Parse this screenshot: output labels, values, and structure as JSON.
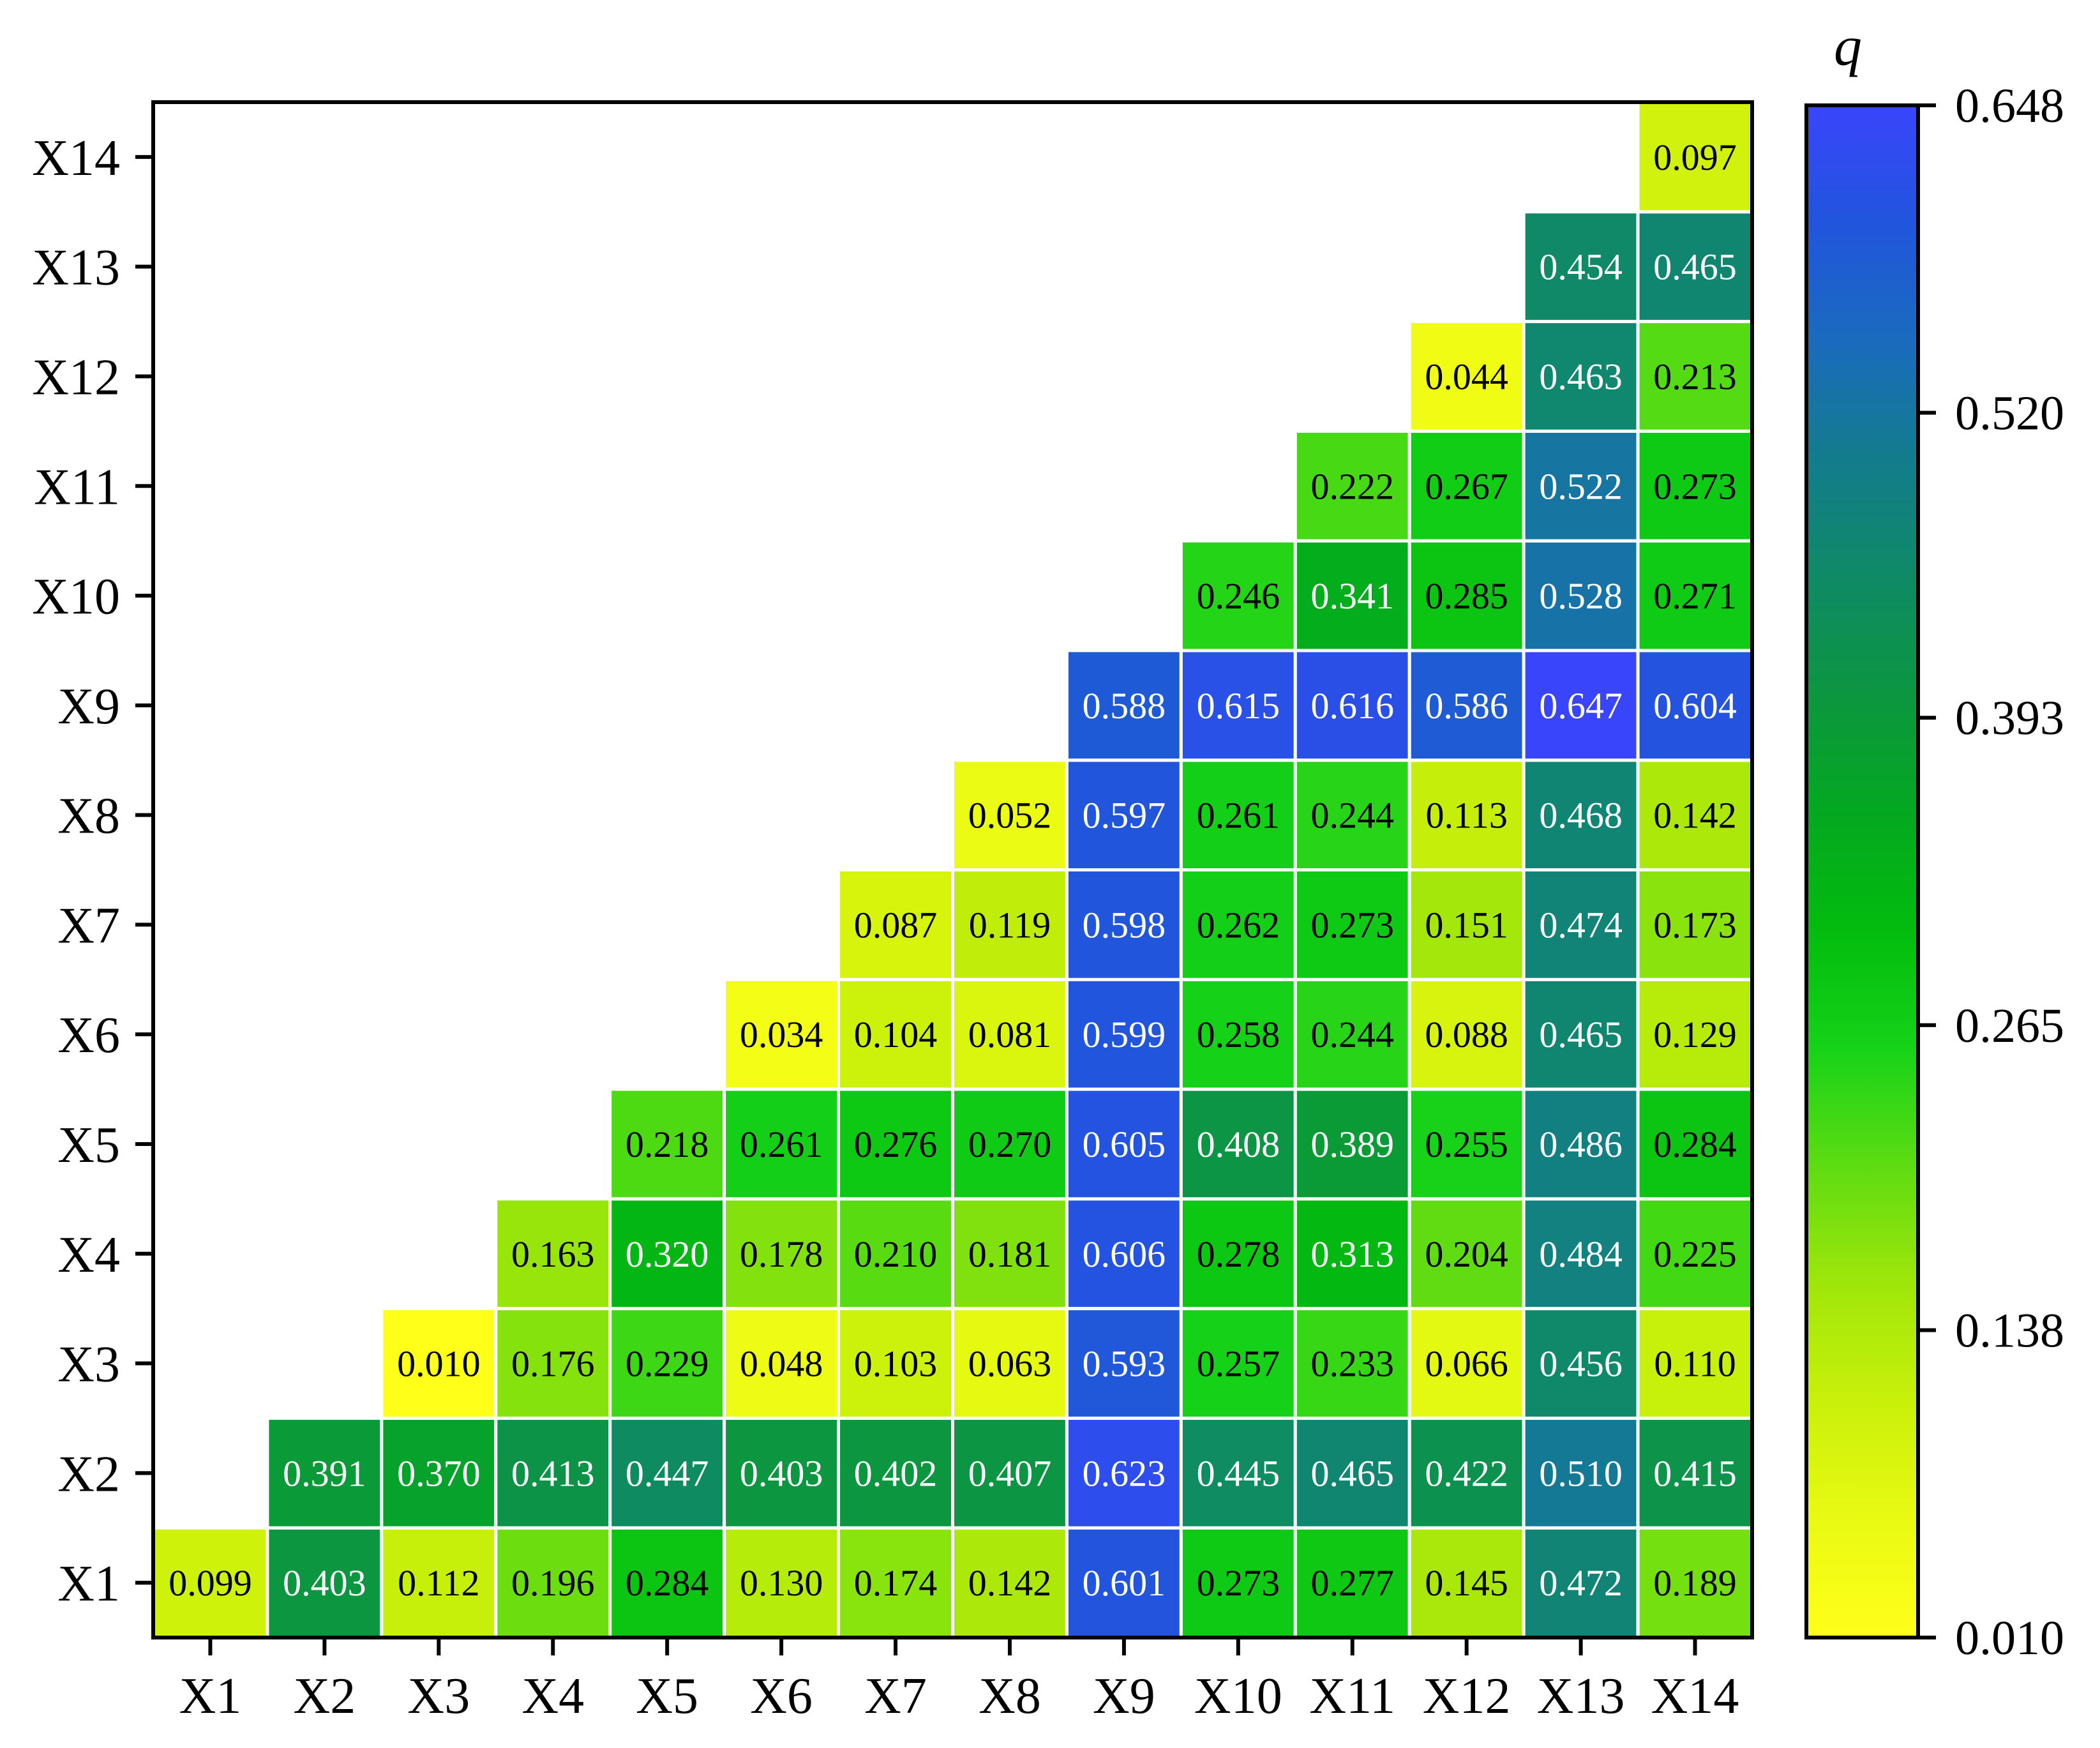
{
  "chart_data": {
    "type": "heatmap",
    "title": "",
    "xlabel": "",
    "ylabel": "",
    "x_categories": [
      "X1",
      "X2",
      "X3",
      "X4",
      "X5",
      "X6",
      "X7",
      "X8",
      "X9",
      "X10",
      "X11",
      "X12",
      "X13",
      "X14"
    ],
    "y_categories": [
      "X1",
      "X2",
      "X3",
      "X4",
      "X5",
      "X6",
      "X7",
      "X8",
      "X9",
      "X10",
      "X11",
      "X12",
      "X13",
      "X14"
    ],
    "value_format": "3 decimals",
    "values": [
      [
        0.099,
        0.403,
        0.112,
        0.196,
        0.284,
        0.13,
        0.174,
        0.142,
        0.601,
        0.273,
        0.277,
        0.145,
        0.472,
        0.189
      ],
      [
        null,
        0.391,
        0.37,
        0.413,
        0.447,
        0.403,
        0.402,
        0.407,
        0.623,
        0.445,
        0.465,
        0.422,
        0.51,
        0.415
      ],
      [
        null,
        null,
        0.01,
        0.176,
        0.229,
        0.048,
        0.103,
        0.063,
        0.593,
        0.257,
        0.233,
        0.066,
        0.456,
        0.11
      ],
      [
        null,
        null,
        null,
        0.163,
        0.32,
        0.178,
        0.21,
        0.181,
        0.606,
        0.278,
        0.313,
        0.204,
        0.484,
        0.225
      ],
      [
        null,
        null,
        null,
        null,
        0.218,
        0.261,
        0.276,
        0.27,
        0.605,
        0.408,
        0.389,
        0.255,
        0.486,
        0.284
      ],
      [
        null,
        null,
        null,
        null,
        null,
        0.034,
        0.104,
        0.081,
        0.599,
        0.258,
        0.244,
        0.088,
        0.465,
        0.129
      ],
      [
        null,
        null,
        null,
        null,
        null,
        null,
        0.087,
        0.119,
        0.598,
        0.262,
        0.273,
        0.151,
        0.474,
        0.173
      ],
      [
        null,
        null,
        null,
        null,
        null,
        null,
        null,
        0.052,
        0.597,
        0.261,
        0.244,
        0.113,
        0.468,
        0.142
      ],
      [
        null,
        null,
        null,
        null,
        null,
        null,
        null,
        null,
        0.588,
        0.615,
        0.616,
        0.586,
        0.647,
        0.604
      ],
      [
        null,
        null,
        null,
        null,
        null,
        null,
        null,
        null,
        null,
        0.246,
        0.341,
        0.285,
        0.528,
        0.271
      ],
      [
        null,
        null,
        null,
        null,
        null,
        null,
        null,
        null,
        null,
        null,
        0.222,
        0.267,
        0.522,
        0.273
      ],
      [
        null,
        null,
        null,
        null,
        null,
        null,
        null,
        null,
        null,
        null,
        null,
        0.044,
        0.463,
        0.213
      ],
      [
        null,
        null,
        null,
        null,
        null,
        null,
        null,
        null,
        null,
        null,
        null,
        null,
        0.454,
        0.465
      ],
      [
        null,
        null,
        null,
        null,
        null,
        null,
        null,
        null,
        null,
        null,
        null,
        null,
        null,
        0.097
      ]
    ],
    "colorbar": {
      "label": "q",
      "min": 0.01,
      "max": 0.648,
      "ticks": [
        "0.010",
        "0.138",
        "0.265",
        "0.393",
        "0.520",
        "0.648"
      ],
      "tick_values": [
        0.01,
        0.138,
        0.265,
        0.393,
        0.52,
        0.648
      ],
      "colors": [
        "#ffff1a",
        "#e9fa12",
        "#c9f00a",
        "#9fe60a",
        "#5edc12",
        "#16d218",
        "#03bc0e",
        "#04a820",
        "#0c9640",
        "#0f8a66",
        "#137c8c",
        "#1a6bbd",
        "#2155dd",
        "#3a45fb"
      ]
    },
    "grid": false,
    "legend": "colorbar-right"
  }
}
